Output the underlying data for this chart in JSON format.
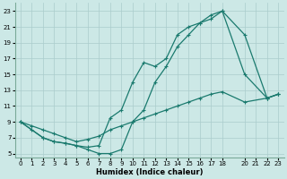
{
  "xlabel": "Humidex (Indice chaleur)",
  "bg_color": "#cce8e6",
  "grid_color": "#aacccc",
  "line_color": "#1a7a6e",
  "xlim": [
    -0.5,
    23.5
  ],
  "ylim": [
    4.5,
    24
  ],
  "xticks": [
    0,
    1,
    2,
    3,
    4,
    5,
    6,
    7,
    8,
    9,
    10,
    11,
    12,
    13,
    14,
    15,
    16,
    17,
    18,
    20,
    21,
    22,
    23
  ],
  "yticks": [
    5,
    7,
    9,
    11,
    13,
    15,
    17,
    19,
    21,
    23
  ],
  "line1_x": [
    0,
    1,
    2,
    3,
    4,
    5,
    6,
    7,
    8,
    9,
    10,
    11,
    12,
    13,
    14,
    15,
    16,
    17,
    18,
    20,
    22,
    23
  ],
  "line1_y": [
    9,
    8.5,
    8,
    7.5,
    7,
    6.5,
    6.8,
    7.2,
    8,
    8.5,
    9,
    9.5,
    10,
    10.5,
    11,
    11.5,
    12,
    12.5,
    12.8,
    11.5,
    12,
    12.5
  ],
  "line2_x": [
    0,
    1,
    2,
    3,
    4,
    5,
    6,
    7,
    8,
    9,
    10,
    11,
    12,
    13,
    14,
    15,
    16,
    17,
    18,
    20,
    22,
    23
  ],
  "line2_y": [
    9,
    8,
    7,
    6.5,
    6.3,
    6,
    5.8,
    6,
    9.5,
    10.5,
    14,
    16.5,
    16,
    17,
    20,
    21,
    21.5,
    22.5,
    23,
    20,
    12,
    12.5
  ],
  "line3_x": [
    0,
    2,
    3,
    4,
    5,
    6,
    7,
    8,
    9,
    10,
    11,
    12,
    13,
    14,
    15,
    16,
    17,
    18,
    20,
    22,
    23
  ],
  "line3_y": [
    9,
    7,
    6.5,
    6.3,
    6,
    5.5,
    5,
    5,
    5.5,
    9,
    10.5,
    14,
    16,
    18.5,
    20,
    21.5,
    22,
    23,
    15,
    12,
    12.5
  ]
}
